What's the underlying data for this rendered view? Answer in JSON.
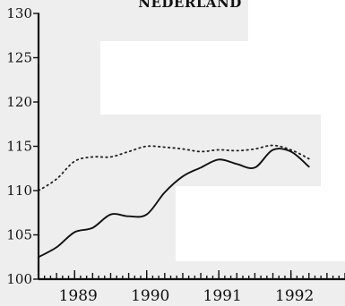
{
  "chart_data": {
    "type": "line",
    "title": "NEDERLAND",
    "xlabel": "",
    "ylabel": "",
    "ylim": [
      100,
      130
    ],
    "yticks": [
      100,
      105,
      110,
      115,
      120,
      125,
      130
    ],
    "xlim": [
      1988.5,
      1992.75
    ],
    "xticks": [
      {
        "value": 1989,
        "label": "1989"
      },
      {
        "value": 1990,
        "label": "1990"
      },
      {
        "value": 1991,
        "label": "1991"
      },
      {
        "value": 1992,
        "label": "1992"
      }
    ],
    "grid": false,
    "legend": "none",
    "series": [
      {
        "style": "dotted",
        "color": "#222222",
        "x": [
          1988.5,
          1988.75,
          1989.0,
          1989.25,
          1989.5,
          1989.75,
          1990.0,
          1990.25,
          1990.5,
          1990.75,
          1991.0,
          1991.25,
          1991.5,
          1991.75,
          1992.0,
          1992.25
        ],
        "y": [
          110.0,
          111.3,
          113.3,
          113.8,
          113.8,
          114.4,
          115.0,
          114.9,
          114.7,
          114.4,
          114.6,
          114.5,
          114.7,
          115.1,
          114.6,
          113.6
        ]
      },
      {
        "style": "solid",
        "color": "#111111",
        "x": [
          1988.5,
          1988.75,
          1989.0,
          1989.25,
          1989.5,
          1989.75,
          1990.0,
          1990.25,
          1990.5,
          1990.75,
          1991.0,
          1991.25,
          1991.5,
          1991.75,
          1992.0,
          1992.25
        ],
        "y": [
          102.5,
          103.6,
          105.3,
          105.8,
          107.3,
          107.1,
          107.3,
          109.8,
          111.6,
          112.6,
          113.5,
          113.0,
          112.6,
          114.6,
          114.4,
          112.7
        ]
      }
    ]
  }
}
